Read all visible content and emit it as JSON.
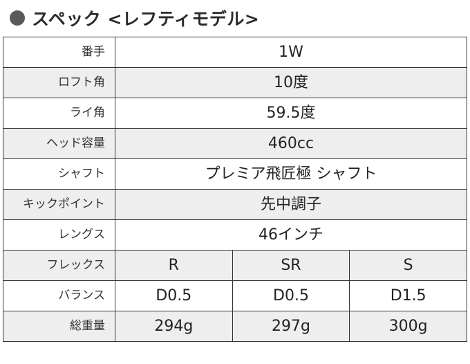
{
  "heading": "スペック <レフティモデル>",
  "rows": [
    {
      "label": "番手",
      "value": "1W"
    },
    {
      "label": "ロフト角",
      "value": "10度"
    },
    {
      "label": "ライ角",
      "value": "59.5度"
    },
    {
      "label": "ヘッド容量",
      "value": "460cc"
    },
    {
      "label": "シャフト",
      "value": "プレミア飛匠極 シャフト"
    },
    {
      "label": "キックポイント",
      "value": "先中調子"
    },
    {
      "label": "レングス",
      "value": "46インチ"
    }
  ],
  "flex_rows": [
    {
      "label": "フレックス",
      "values": [
        "R",
        "SR",
        "S"
      ]
    },
    {
      "label": "バランス",
      "values": [
        "D0.5",
        "D0.5",
        "D1.5"
      ]
    },
    {
      "label": "総重量",
      "values": [
        "294g",
        "297g",
        "300g"
      ]
    }
  ]
}
